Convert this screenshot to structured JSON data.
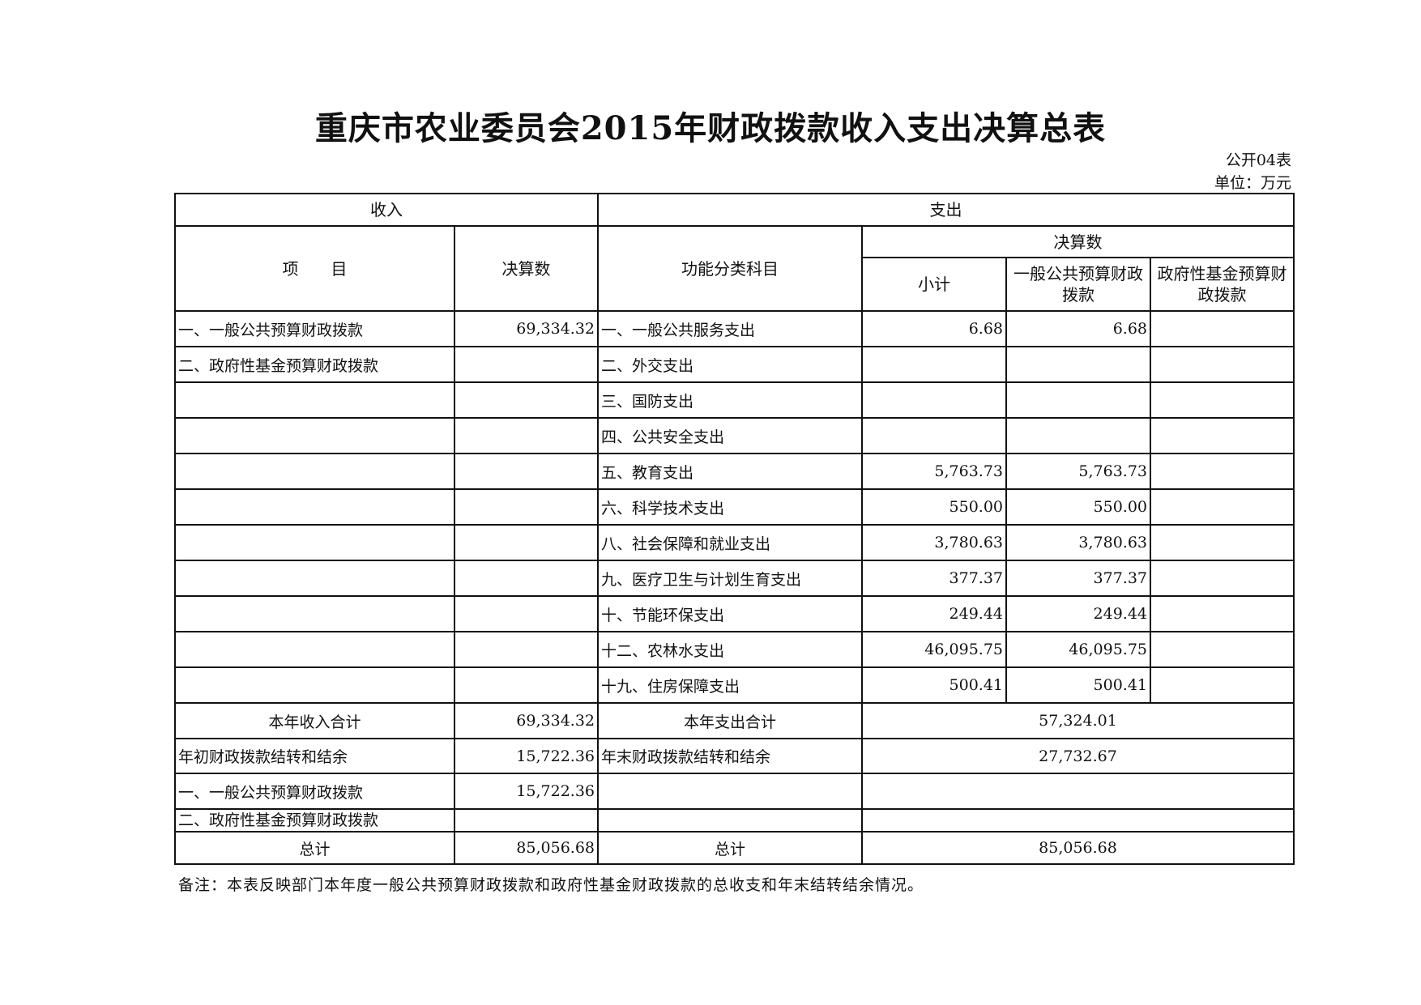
{
  "title": "重庆市农业委员会2015年财政拨款收入支出决算总表",
  "form_no": "公开04表",
  "unit": "单位：万元",
  "headers": {
    "income": "收入",
    "expense": "支出",
    "item": "项　　目",
    "amount": "决算数",
    "function_category": "功能分类科目",
    "final_amount": "决算数",
    "subtotal": "小计",
    "general_budget": "一般公共预算财政拨款",
    "gov_fund": "政府性基金预算财政拨款"
  },
  "rows": [
    {
      "income_item": "一、一般公共预算财政拨款",
      "income_amount": "69,334.32",
      "expense_item": "一、一般公共服务支出",
      "subtotal": "6.68",
      "general": "6.68",
      "fund": ""
    },
    {
      "income_item": "二、政府性基金预算财政拨款",
      "income_amount": "",
      "expense_item": "二、外交支出",
      "subtotal": "",
      "general": "",
      "fund": ""
    },
    {
      "income_item": "",
      "income_amount": "",
      "expense_item": "三、国防支出",
      "subtotal": "",
      "general": "",
      "fund": ""
    },
    {
      "income_item": "",
      "income_amount": "",
      "expense_item": "四、公共安全支出",
      "subtotal": "",
      "general": "",
      "fund": ""
    },
    {
      "income_item": "",
      "income_amount": "",
      "expense_item": "五、教育支出",
      "subtotal": "5,763.73",
      "general": "5,763.73",
      "fund": ""
    },
    {
      "income_item": "",
      "income_amount": "",
      "expense_item": "六、科学技术支出",
      "subtotal": "550.00",
      "general": "550.00",
      "fund": ""
    },
    {
      "income_item": "",
      "income_amount": "",
      "expense_item": "八、社会保障和就业支出",
      "subtotal": "3,780.63",
      "general": "3,780.63",
      "fund": ""
    },
    {
      "income_item": "",
      "income_amount": "",
      "expense_item": "九、医疗卫生与计划生育支出",
      "subtotal": "377.37",
      "general": "377.37",
      "fund": ""
    },
    {
      "income_item": "",
      "income_amount": "",
      "expense_item": "十、节能环保支出",
      "subtotal": "249.44",
      "general": "249.44",
      "fund": ""
    },
    {
      "income_item": "",
      "income_amount": "",
      "expense_item": "十二、农林水支出",
      "subtotal": "46,095.75",
      "general": "46,095.75",
      "fund": ""
    },
    {
      "income_item": "",
      "income_amount": "",
      "expense_item": "十九、住房保障支出",
      "subtotal": "500.41",
      "general": "500.41",
      "fund": ""
    }
  ],
  "summary": {
    "income_total_label": "本年收入合计",
    "income_total": "69,334.32",
    "expense_total_label": "本年支出合计",
    "expense_total": "57,324.01",
    "begin_balance_label": "年初财政拨款结转和结余",
    "begin_balance": "15,722.36",
    "end_balance_label": "年末财政拨款结转和结余",
    "end_balance": "27,732.67",
    "begin_general_label": "一、一般公共预算财政拨款",
    "begin_general": "15,722.36",
    "begin_fund_label": "二、政府性基金预算财政拨款",
    "grand_income_label": "总计",
    "grand_income": "85,056.68",
    "grand_expense_label": "总计",
    "grand_expense": "85,056.68"
  },
  "note": "备注：本表反映部门本年度一般公共预算财政拨款和政府性基金财政拨款的总收支和年末结转结余情况。"
}
